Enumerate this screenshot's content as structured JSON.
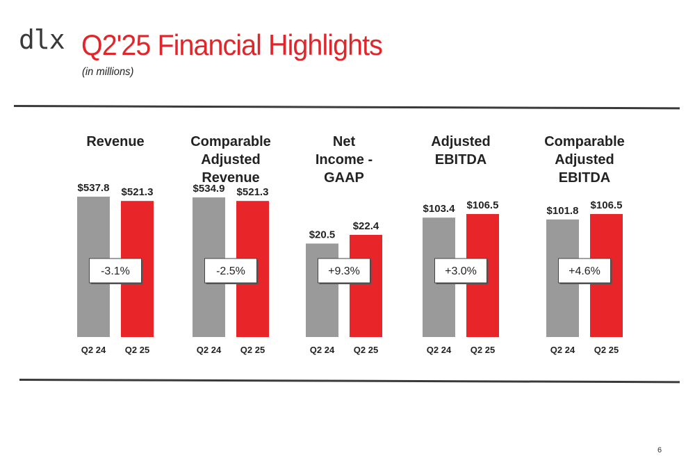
{
  "header": {
    "logo": "dlx",
    "title": "Q2'25 Financial Highlights",
    "subtitle": "(in millions)"
  },
  "page_number": "6",
  "colors": {
    "prior": "#9a9a9a",
    "current": "#e8262a",
    "title": "#e1262b",
    "rule": "#3a3a3a"
  },
  "chart_data": [
    {
      "type": "bar",
      "title": "Revenue",
      "categories": [
        "Q2 24",
        "Q2 25"
      ],
      "values": [
        537.8,
        521.3
      ],
      "data_labels": [
        "$537.8",
        "$521.3"
      ],
      "change_label": "-3.1%"
    },
    {
      "type": "bar",
      "title": "Comparable Adjusted Revenue",
      "categories": [
        "Q2 24",
        "Q2 25"
      ],
      "values": [
        534.9,
        521.3
      ],
      "data_labels": [
        "$534.9",
        "$521.3"
      ],
      "change_label": "-2.5%"
    },
    {
      "type": "bar",
      "title": "Net Income - GAAP",
      "categories": [
        "Q2 24",
        "Q2 25"
      ],
      "values": [
        20.5,
        22.4
      ],
      "data_labels": [
        "$20.5",
        "$22.4"
      ],
      "change_label": "+9.3%"
    },
    {
      "type": "bar",
      "title": "Adjusted EBITDA",
      "categories": [
        "Q2 24",
        "Q2 25"
      ],
      "values": [
        103.4,
        106.5
      ],
      "data_labels": [
        "$103.4",
        "$106.5"
      ],
      "change_label": "+3.0%"
    },
    {
      "type": "bar",
      "title": "Comparable Adjusted EBITDA",
      "categories": [
        "Q2 24",
        "Q2 25"
      ],
      "values": [
        101.8,
        106.5
      ],
      "data_labels": [
        "$101.8",
        "$106.5"
      ],
      "change_label": "+4.6%"
    }
  ]
}
